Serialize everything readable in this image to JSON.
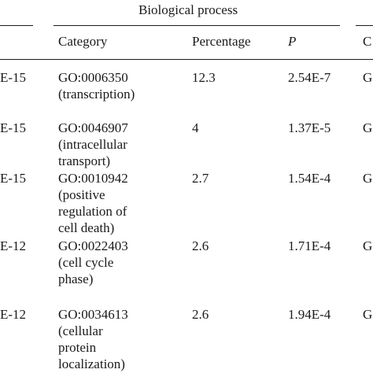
{
  "table": {
    "group_header": "Biological process",
    "columns": {
      "category": "Category",
      "percentage": "Percentage",
      "p": "P",
      "next_col_partial": "C"
    },
    "rows": [
      {
        "left_partial": "E-15",
        "category_id": "GO:0006350",
        "category_desc": [
          "(transcription)"
        ],
        "percentage": "12.3",
        "p": "2.54E-7",
        "right_partial": "G"
      },
      {
        "left_partial": "E-15",
        "category_id": "GO:0046907",
        "category_desc": [
          "(intracellular",
          "transport)"
        ],
        "percentage": "4",
        "p": "1.37E-5",
        "right_partial": "G"
      },
      {
        "left_partial": "E-15",
        "category_id": "GO:0010942",
        "category_desc": [
          "(positive",
          "regulation of",
          "cell death)"
        ],
        "percentage": "2.7",
        "p": "1.54E-4",
        "right_partial": "G"
      },
      {
        "left_partial": "E-12",
        "category_id": "GO:0022403",
        "category_desc": [
          "(cell cycle",
          "phase)"
        ],
        "percentage": "2.6",
        "p": "1.71E-4",
        "right_partial": "G"
      },
      {
        "left_partial": "E-12",
        "category_id": "GO:0034613",
        "category_desc": [
          "(cellular",
          "protein",
          "localization)"
        ],
        "percentage": "2.6",
        "p": "1.94E-4",
        "right_partial": "G"
      }
    ]
  }
}
